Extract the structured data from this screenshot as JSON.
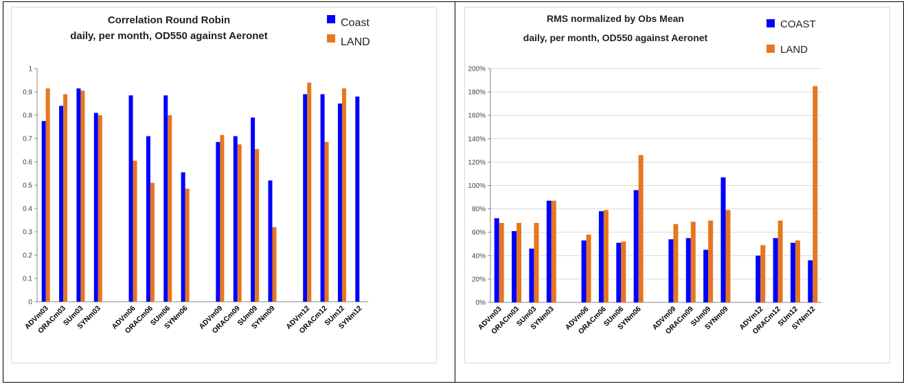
{
  "colors": {
    "coast": "#0000ff",
    "land": "#e6761f",
    "grid": "#d9d9d9",
    "axis": "#868686"
  },
  "chart_data": [
    {
      "type": "bar",
      "title": [
        "Correlation Round Robin",
        "daily, per month, OD550 against Aeronet"
      ],
      "categories": [
        "ADVm03",
        "ORACm03",
        "SUm03",
        "SYNm03",
        "ADVm06",
        "ORACm06",
        "SUm06",
        "SYNm06",
        "ADVm09",
        "ORACm09",
        "SUm09",
        "SYNm09",
        "ADVm12",
        "ORACm12",
        "SUm12",
        "SYNm12"
      ],
      "groups": [
        4,
        4,
        4,
        4
      ],
      "series": [
        {
          "name": "Coast",
          "values": [
            0.775,
            0.84,
            0.915,
            0.81,
            0.885,
            0.71,
            0.885,
            0.555,
            0.685,
            0.71,
            0.79,
            0.52,
            0.89,
            0.89,
            0.85,
            0.88
          ]
        },
        {
          "name": "LAND",
          "values": [
            0.915,
            0.89,
            0.905,
            0.8,
            0.605,
            0.51,
            0.8,
            0.485,
            0.715,
            0.675,
            0.655,
            0.32,
            0.94,
            0.685,
            0.915,
            null
          ]
        }
      ],
      "ylim": [
        0,
        1
      ],
      "yticks": [
        "0",
        "0.1",
        "0.2",
        "0.3",
        "0.4",
        "0.5",
        "0.6",
        "0.7",
        "0.8",
        "0.9",
        "1"
      ],
      "legend": "top-right",
      "grid": false
    },
    {
      "type": "bar",
      "title": [
        "RMS normalized by Obs Mean",
        "daily, per month, OD550 against Aeronet"
      ],
      "categories": [
        "ADVm03",
        "ORACm03",
        "SUm03",
        "SYNm03",
        "ADVm06",
        "ORACm06",
        "SUm06",
        "SYNm06",
        "ADVm09",
        "ORACm09",
        "SUm09",
        "SYNm09",
        "ADVm12",
        "ORACm12",
        "SUm12",
        "SYNm12"
      ],
      "groups": [
        4,
        4,
        4,
        4
      ],
      "series": [
        {
          "name": "COAST",
          "values": [
            0.72,
            0.61,
            0.46,
            0.87,
            0.53,
            0.78,
            0.51,
            0.96,
            0.54,
            0.55,
            0.45,
            1.07,
            0.4,
            0.55,
            0.51,
            0.36
          ]
        },
        {
          "name": "LAND",
          "values": [
            0.68,
            0.68,
            0.68,
            0.87,
            0.58,
            0.79,
            0.52,
            1.26,
            0.67,
            0.69,
            0.7,
            0.79,
            0.49,
            0.7,
            0.53,
            1.85
          ]
        }
      ],
      "ylim": [
        0,
        2
      ],
      "yticks": [
        "0%",
        "20%",
        "40%",
        "60%",
        "80%",
        "100%",
        "120%",
        "140%",
        "160%",
        "180%",
        "200%"
      ],
      "legend": "top-right",
      "grid": true
    }
  ]
}
